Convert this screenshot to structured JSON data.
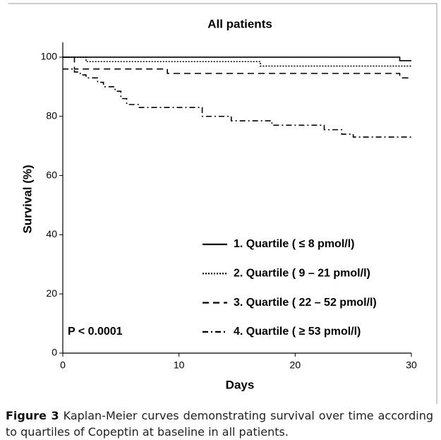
{
  "chart_data": {
    "type": "step-line",
    "title": "All patients",
    "x_label": "Days",
    "y_label": "Survival (%)",
    "xlim": [
      0,
      30
    ],
    "xticks": [
      0,
      10,
      20,
      30
    ],
    "ylim": [
      0,
      105
    ],
    "yticks": [
      0,
      20,
      40,
      60,
      80,
      100
    ],
    "annotation": "P < 0.0001",
    "series": [
      {
        "name": "1. Quartile ( ≤ 8 pmol/l)",
        "color": "#000000",
        "dash": "solid",
        "x": [
          0,
          29,
          30
        ],
        "values": [
          100,
          98.8,
          98.8
        ]
      },
      {
        "name": "2. Quartile ( 9 – 21 pmol/l)",
        "color": "#000000",
        "dash": "dotted",
        "x": [
          0,
          2,
          17,
          30
        ],
        "values": [
          100,
          98.5,
          97,
          97
        ]
      },
      {
        "name": "3. Quartile ( 22 – 52 pmol/l)",
        "color": "#000000",
        "dash": "dashed",
        "x": [
          0,
          1,
          9,
          29,
          30
        ],
        "values": [
          100,
          96,
          94.5,
          93,
          93
        ]
      },
      {
        "name": "4. Quartile ( ≥ 53 pmol/l)",
        "color": "#000000",
        "dash": "dashdot",
        "x": [
          0,
          1,
          1.5,
          2,
          3,
          3.5,
          4.5,
          5,
          5.5,
          6.5,
          12,
          14.5,
          18,
          22.5,
          24,
          25,
          30
        ],
        "values": [
          96,
          95,
          94,
          93,
          91.5,
          90,
          88.5,
          86,
          84,
          83,
          80,
          78.5,
          77,
          75.5,
          74,
          73,
          73
        ]
      }
    ]
  },
  "caption": {
    "label": "Figure 3",
    "text": "Kaplan-Meier curves demonstrating survival over time according to quartiles of Copeptin at baseline in all patients."
  }
}
